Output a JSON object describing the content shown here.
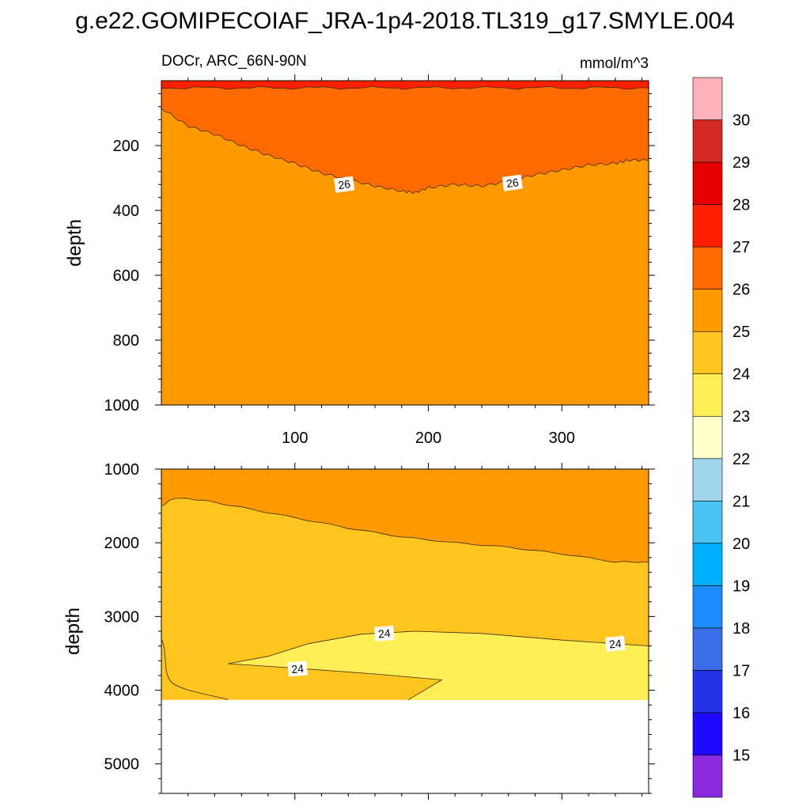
{
  "title": "g.e22.GOMIPECOIAF_JRA-1p4-2018.TL319_g17.SMYLE.004",
  "subtitle_left": "DOCr, ARC_66N-90N",
  "subtitle_right": "mmol/m^3",
  "colors": {
    "bands": [
      "#8a2be2",
      "#1e0aff",
      "#2233e8",
      "#3a6ee8",
      "#1e8cff",
      "#00b0ff",
      "#4cc3f5",
      "#a0d6ee",
      "#ffffcc",
      "#ffee55",
      "#fdc51e",
      "#fe9900",
      "#ff6a00",
      "#ff2000",
      "#e50000",
      "#d42a24",
      "#ffb3b8"
    ],
    "contour": "#3a2a10"
  },
  "chart_data": [
    {
      "type": "heatmap",
      "panel": "upper",
      "ylabel": "depth",
      "xlim": [
        0,
        365
      ],
      "ylim": [
        1000,
        0
      ],
      "x_ticks": [
        100,
        200,
        300
      ],
      "y_ticks": [
        200,
        400,
        600,
        800,
        1000
      ],
      "grid": false,
      "regions": [
        {
          "level": "25-26",
          "description": "below the 26 contour, ~100-350 m down to 1000 m"
        },
        {
          "level": "26-27",
          "description": "upper layer above the 26 contour"
        },
        {
          "level": "27-28",
          "description": "thin surface layer near 0-25 m"
        }
      ],
      "contour_26_depth": {
        "x": [
          0,
          20,
          40,
          60,
          80,
          100,
          120,
          140,
          160,
          180,
          190,
          200,
          220,
          240,
          260,
          280,
          300,
          320,
          340,
          350,
          365
        ],
        "y": [
          85,
          140,
          165,
          200,
          230,
          255,
          285,
          305,
          325,
          340,
          345,
          330,
          320,
          325,
          310,
          290,
          275,
          260,
          255,
          245,
          245
        ]
      },
      "contour_labels": [
        {
          "x": 137,
          "y": 320,
          "text": "26"
        },
        {
          "x": 263,
          "y": 315,
          "text": "26"
        }
      ]
    },
    {
      "type": "heatmap",
      "panel": "lower",
      "ylabel": "depth",
      "xlim": [
        0,
        365
      ],
      "ylim": [
        5400,
        1000
      ],
      "y_ticks": [
        1000,
        2000,
        3000,
        4000,
        5000
      ],
      "grid": false,
      "bottom_depth": 4130,
      "regions": [
        {
          "level": "25-26",
          "description": "top layer above the 25 contour"
        },
        {
          "level": "24-25",
          "description": "middle layer"
        },
        {
          "level": "23-24",
          "description": "tongue near 3200-4100 m on the right"
        }
      ],
      "contour_25_depth": {
        "x": [
          0,
          10,
          30,
          60,
          100,
          140,
          180,
          220,
          260,
          300,
          340,
          365
        ],
        "y": [
          1500,
          1390,
          1420,
          1520,
          1660,
          1800,
          1920,
          2000,
          2060,
          2150,
          2260,
          2260
        ]
      },
      "contour_labels": [
        {
          "x": 167,
          "y": 3230,
          "text": "24"
        },
        {
          "x": 102,
          "y": 3710,
          "text": "24"
        },
        {
          "x": 340,
          "y": 3370,
          "text": "24"
        }
      ]
    }
  ],
  "colorbar": {
    "labels": [
      "15",
      "16",
      "17",
      "18",
      "19",
      "20",
      "21",
      "22",
      "23",
      "24",
      "25",
      "26",
      "27",
      "28",
      "29",
      "30"
    ]
  }
}
